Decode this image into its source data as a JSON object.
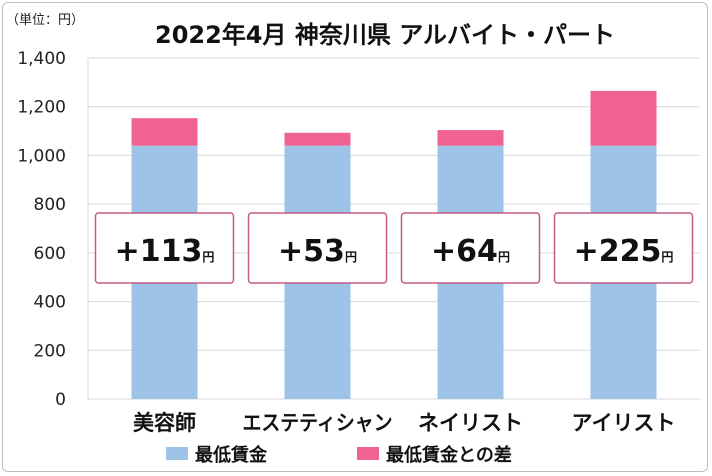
{
  "chart_data": {
    "type": "bar",
    "stacked": true,
    "title": "2022年4月 神奈川県 アルバイト・パート",
    "unit_label": "（単位：円）",
    "categories": [
      "美容師",
      "エステティシャン",
      "ネイリスト",
      "アイリスト"
    ],
    "series": [
      {
        "name": "最低賃金",
        "color": "#9dc3e6",
        "values": [
          1040,
          1040,
          1040,
          1040
        ]
      },
      {
        "name": "最低賃金との差",
        "color": "#f06292",
        "values": [
          113,
          53,
          64,
          225
        ]
      }
    ],
    "difference_labels": [
      {
        "sign": "+",
        "value": "113",
        "unit": "円"
      },
      {
        "sign": "+",
        "value": "53",
        "unit": "円"
      },
      {
        "sign": "+",
        "value": "64",
        "unit": "円"
      },
      {
        "sign": "+",
        "value": "225",
        "unit": "円"
      }
    ],
    "yticks": [
      "0",
      "200",
      "400",
      "600",
      "800",
      "1,000",
      "1,200",
      "1,400"
    ],
    "ylim": [
      0,
      1400
    ],
    "grid": true,
    "legend_position": "bottom",
    "annotation_box_color": "#c55a8a"
  }
}
